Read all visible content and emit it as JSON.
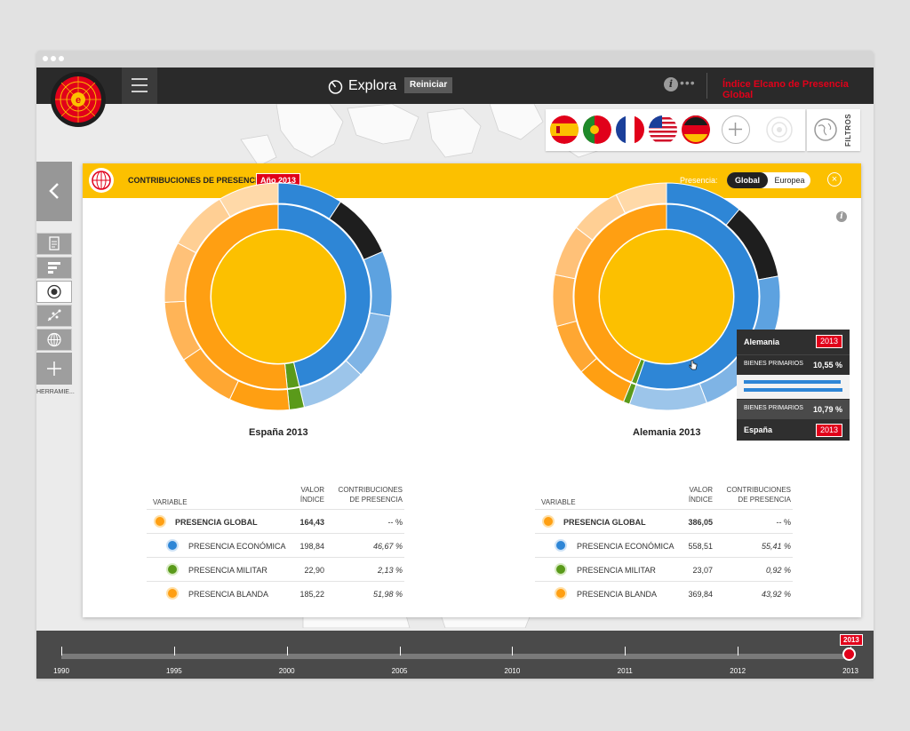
{
  "header": {
    "explora_label": "Explora",
    "reiniciar_label": "Reiniciar",
    "info_label": "i",
    "more_label": "•••",
    "indice_label": "Índice Elcano de Presencia Global"
  },
  "flags": [
    {
      "name": "España",
      "icon": "flag-spain-icon"
    },
    {
      "name": "Portugal",
      "icon": "flag-portugal-icon"
    },
    {
      "name": "Francia",
      "icon": "flag-france-icon"
    },
    {
      "name": "Estados Unidos",
      "icon": "flag-usa-icon"
    },
    {
      "name": "Alemania",
      "icon": "flag-germany-icon"
    }
  ],
  "filtros_label": "FILTROS",
  "sidebar": {
    "herramientas_label": "HERRAMIE..."
  },
  "panel": {
    "title": "CONTRIBUCIONES DE PRESENCIA",
    "year_badge": "Año 2013",
    "presencia_label": "Presencia:",
    "toggle_on": "Global",
    "toggle_off": "Europea",
    "close_label": "×",
    "info_label": "i"
  },
  "colors": {
    "yellow": "#fcc000",
    "orange": "#ff9f12",
    "blue": "#2e86d6",
    "light_blue": "#7fb4e5",
    "black": "#1e1e1e",
    "green": "#5a9a1a",
    "red": "#e1001a"
  },
  "charts": [
    {
      "title": "España 2013",
      "table": {
        "col_variable": "VARIABLE",
        "col_valor_1": "VALOR",
        "col_valor_2": "ÍNDICE",
        "col_contrib_1": "CONTRIBUCIONES",
        "col_contrib_2": "DE PRESENCIA",
        "rows": [
          {
            "name": "PRESENCIA GLOBAL",
            "value": "164,43",
            "contrib": "-- %",
            "bold": true
          },
          {
            "name": "PRESENCIA ECONÓMICA",
            "value": "198,84",
            "contrib": "46,67 %"
          },
          {
            "name": "PRESENCIA MILITAR",
            "value": "22,90",
            "contrib": "2,13 %"
          },
          {
            "name": "PRESENCIA BLANDA",
            "value": "185,22",
            "contrib": "51,98 %"
          }
        ]
      }
    },
    {
      "title": "Alemania 2013",
      "table": {
        "col_variable": "VARIABLE",
        "col_valor_1": "VALOR",
        "col_valor_2": "ÍNDICE",
        "col_contrib_1": "CONTRIBUCIONES",
        "col_contrib_2": "DE PRESENCIA",
        "rows": [
          {
            "name": "PRESENCIA GLOBAL",
            "value": "386,05",
            "contrib": "-- %",
            "bold": true
          },
          {
            "name": "PRESENCIA ECONÓMICA",
            "value": "558,51",
            "contrib": "55,41 %"
          },
          {
            "name": "PRESENCIA MILITAR",
            "value": "23,07",
            "contrib": "0,92 %"
          },
          {
            "name": "PRESENCIA BLANDA",
            "value": "369,84",
            "contrib": "43,92 %"
          }
        ]
      }
    }
  ],
  "tooltip": {
    "country_a": "Alemania",
    "year_a": "2013",
    "label_a": "BIENES PRIMARIOS",
    "value_a": "10,55 %",
    "label_b": "BIENES PRIMARIOS",
    "value_b": "10,79 %",
    "country_b": "España",
    "year_b": "2013",
    "bar_a": 0.1055,
    "bar_b": 0.1079
  },
  "timeline": {
    "years": [
      "1990",
      "1995",
      "2000",
      "2005",
      "2010",
      "2011",
      "2012",
      "2013"
    ],
    "selected": "2013"
  }
}
